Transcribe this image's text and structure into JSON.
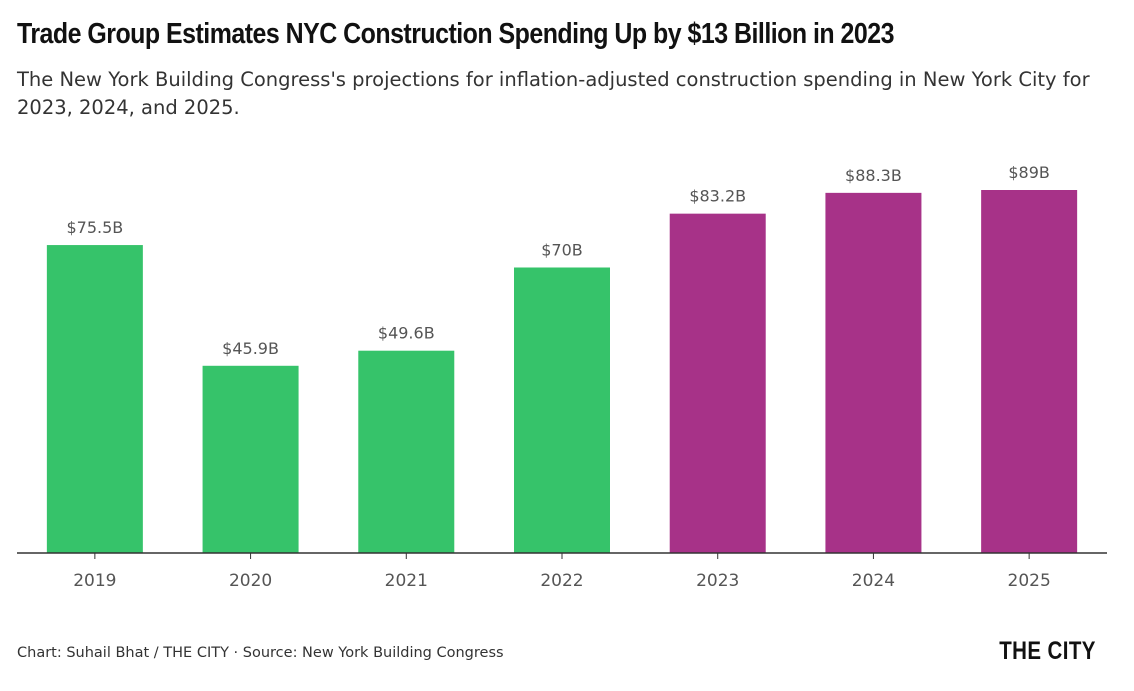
{
  "header": {
    "title": "Trade Group Estimates NYC Construction Spending Up by $13 Billion in 2023",
    "subtitle": "The New York Building Congress's projections for inflation-adjusted construction spending in New York City for 2023, 2024, and 2025."
  },
  "footer": {
    "credit": "Chart: Suhail Bhat / THE CITY · Source: New York Building Congress",
    "logo": "THE CITY"
  },
  "colors": {
    "actual": "#36c36a",
    "projected": "#a73288",
    "label": "#555555",
    "axis": "#333333"
  },
  "chart_data": {
    "type": "bar",
    "title": "Trade Group Estimates NYC Construction Spending Up by $13 Billion in 2023",
    "xlabel": "",
    "ylabel": "",
    "ylim": [
      0,
      89
    ],
    "grid": false,
    "categories": [
      "2019",
      "2020",
      "2021",
      "2022",
      "2023",
      "2024",
      "2025"
    ],
    "values": [
      75.5,
      45.9,
      49.6,
      70,
      83.2,
      88.3,
      89
    ],
    "labels": [
      "$75.5B",
      "$45.9B",
      "$49.6B",
      "$70B",
      "$83.2B",
      "$88.3B",
      "$89B"
    ],
    "projected": [
      false,
      false,
      false,
      false,
      true,
      true,
      true
    ],
    "unit": "billion USD"
  }
}
